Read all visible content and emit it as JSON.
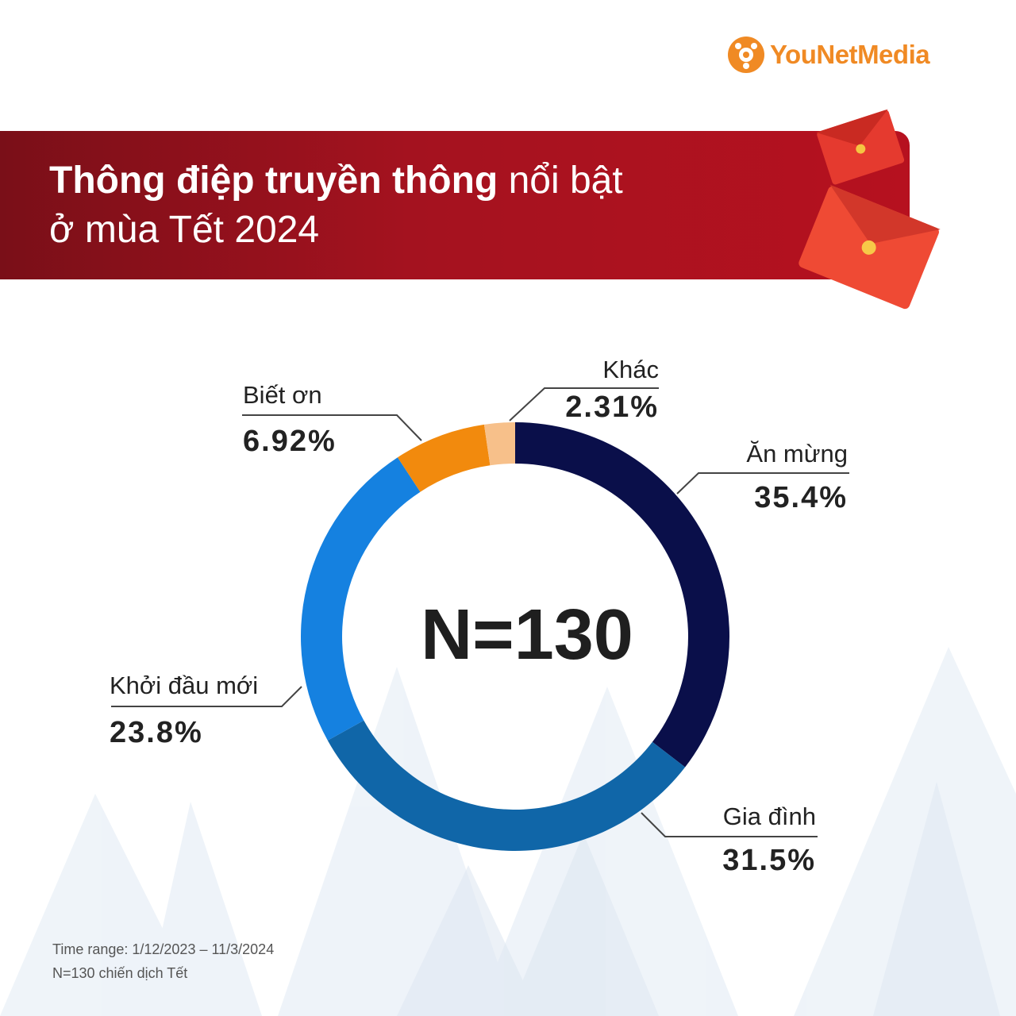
{
  "brand": {
    "name_part1": "YouNet",
    "name_part2": "Media"
  },
  "title": {
    "bold": "Thông điệp truyền thông",
    "normal": " nổi bật",
    "line2": "ở mùa Tết 2024"
  },
  "colors": {
    "banner": "#a4121f",
    "accent": "#f08a24"
  },
  "chart_data": {
    "type": "pie",
    "donut": true,
    "center_label": "N=130",
    "slices": [
      {
        "label": "Ăn mừng",
        "value_label": "35.4%",
        "value": 35.4,
        "color": "#0a0f4a"
      },
      {
        "label": "Gia đình",
        "value_label": "31.5%",
        "value": 31.5,
        "color": "#1066a8"
      },
      {
        "label": "Khởi đầu mới",
        "value_label": "23.8%",
        "value": 23.8,
        "color": "#1581e0"
      },
      {
        "label": "Biết ơn",
        "value_label": "6.92%",
        "value": 6.92,
        "color": "#f28a0d"
      },
      {
        "label": "Khác",
        "value_label": "2.31%",
        "value": 2.31,
        "color": "#f7c08a"
      }
    ]
  },
  "footnote": {
    "line1": "Time range: 1/12/2023 – 11/3/2024",
    "line2": "N=130 chiến dịch Tết"
  }
}
